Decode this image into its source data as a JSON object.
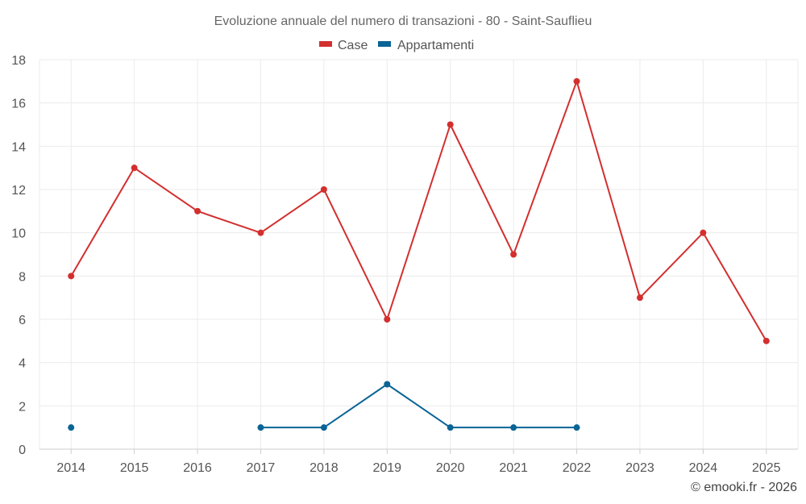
{
  "chart_data": {
    "type": "line",
    "title": "Evoluzione annuale del numero di transazioni - 80 - Saint-Sauflieu",
    "categories": [
      "2014",
      "2015",
      "2016",
      "2017",
      "2018",
      "2019",
      "2020",
      "2021",
      "2022",
      "2023",
      "2024",
      "2025"
    ],
    "series": [
      {
        "name": "Case",
        "color": "#d32f2f",
        "values": [
          8,
          13,
          11,
          10,
          12,
          6,
          15,
          9,
          17,
          7,
          10,
          5
        ]
      },
      {
        "name": "Appartamenti",
        "color": "#0a6496",
        "values": [
          1,
          null,
          null,
          1,
          1,
          3,
          1,
          1,
          1,
          null,
          null,
          null
        ]
      }
    ],
    "ylim": [
      0,
      18
    ],
    "yticks": [
      0,
      2,
      4,
      6,
      8,
      10,
      12,
      14,
      16,
      18
    ],
    "grid": true,
    "legend": "top-center"
  },
  "credit": "© emooki.fr - 2026"
}
